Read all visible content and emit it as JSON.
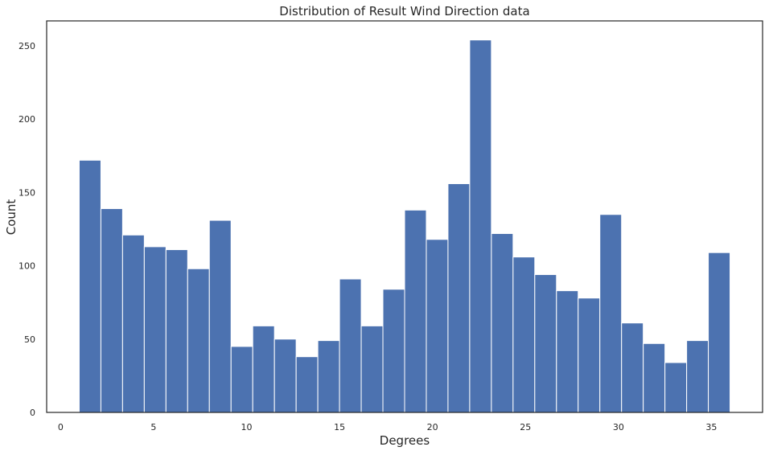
{
  "chart_data": {
    "type": "bar",
    "title": "Distribution of Result Wind Direction data",
    "xlabel": "Degrees",
    "ylabel": "Count",
    "xlim": [
      -0.75,
      37.75
    ],
    "ylim": [
      0,
      267
    ],
    "x_ticks": [
      0,
      5,
      10,
      15,
      20,
      25,
      30,
      35
    ],
    "y_ticks": [
      0,
      50,
      100,
      150,
      200,
      250
    ],
    "grid": false,
    "legend": "none",
    "color": "#4c72b0",
    "bins": [
      {
        "x0": 1.0,
        "x1": 2.167,
        "count": 172
      },
      {
        "x0": 2.167,
        "x1": 3.333,
        "count": 139
      },
      {
        "x0": 3.333,
        "x1": 4.5,
        "count": 121
      },
      {
        "x0": 4.5,
        "x1": 5.667,
        "count": 113
      },
      {
        "x0": 5.667,
        "x1": 6.833,
        "count": 111
      },
      {
        "x0": 6.833,
        "x1": 8.0,
        "count": 98
      },
      {
        "x0": 8.0,
        "x1": 9.167,
        "count": 131
      },
      {
        "x0": 9.167,
        "x1": 10.333,
        "count": 45
      },
      {
        "x0": 10.333,
        "x1": 11.5,
        "count": 59
      },
      {
        "x0": 11.5,
        "x1": 12.667,
        "count": 50
      },
      {
        "x0": 12.667,
        "x1": 13.833,
        "count": 38
      },
      {
        "x0": 13.833,
        "x1": 15.0,
        "count": 49
      },
      {
        "x0": 15.0,
        "x1": 16.167,
        "count": 91
      },
      {
        "x0": 16.167,
        "x1": 17.333,
        "count": 59
      },
      {
        "x0": 17.333,
        "x1": 18.5,
        "count": 84
      },
      {
        "x0": 18.5,
        "x1": 19.667,
        "count": 138
      },
      {
        "x0": 19.667,
        "x1": 20.833,
        "count": 118
      },
      {
        "x0": 20.833,
        "x1": 22.0,
        "count": 156
      },
      {
        "x0": 22.0,
        "x1": 23.167,
        "count": 254
      },
      {
        "x0": 23.167,
        "x1": 24.333,
        "count": 122
      },
      {
        "x0": 24.333,
        "x1": 25.5,
        "count": 106
      },
      {
        "x0": 25.5,
        "x1": 26.667,
        "count": 94
      },
      {
        "x0": 26.667,
        "x1": 27.833,
        "count": 83
      },
      {
        "x0": 27.833,
        "x1": 29.0,
        "count": 78
      },
      {
        "x0": 29.0,
        "x1": 30.167,
        "count": 135
      },
      {
        "x0": 30.167,
        "x1": 31.333,
        "count": 61
      },
      {
        "x0": 31.333,
        "x1": 32.5,
        "count": 47
      },
      {
        "x0": 32.5,
        "x1": 33.667,
        "count": 34
      },
      {
        "x0": 33.667,
        "x1": 34.833,
        "count": 49
      },
      {
        "x0": 34.833,
        "x1": 36.0,
        "count": 109
      }
    ]
  }
}
